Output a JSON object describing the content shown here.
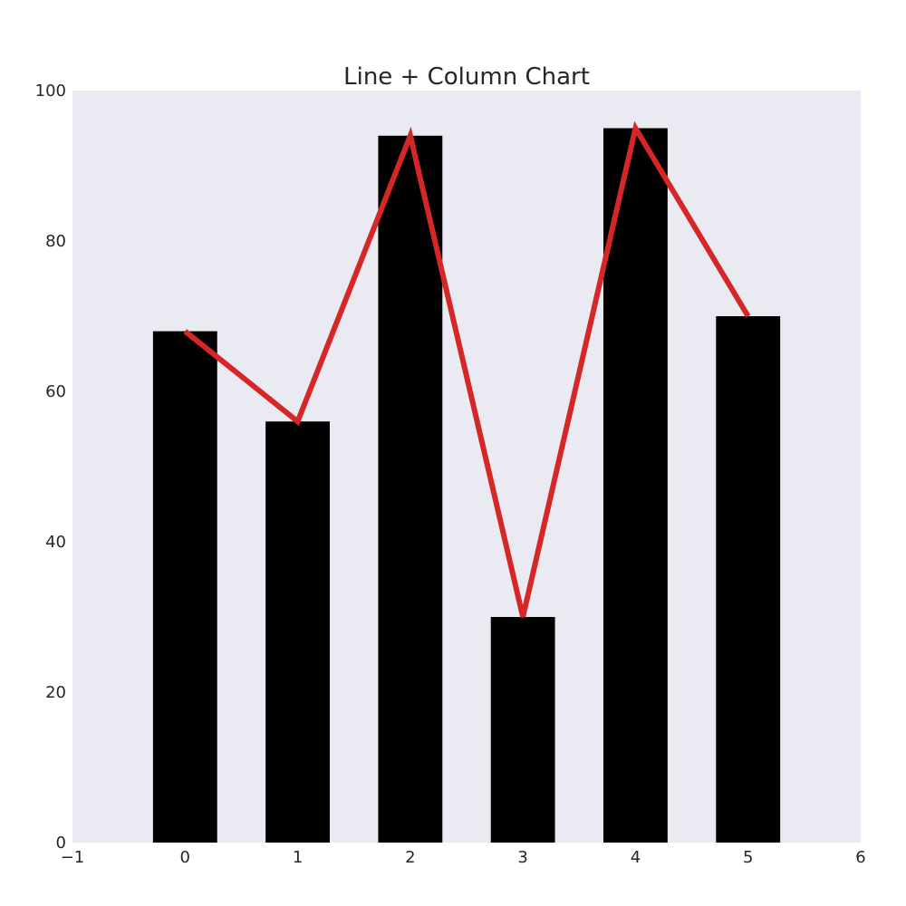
{
  "chart_data": {
    "type": "bar",
    "title": "Line + Column Chart",
    "xlabel": "",
    "ylabel": "",
    "x": [
      0,
      1,
      2,
      3,
      4,
      5
    ],
    "series": [
      {
        "kind": "bar",
        "values": [
          68,
          56,
          94,
          30,
          95,
          70
        ],
        "color": "#000000",
        "bar_width": 0.57
      },
      {
        "kind": "line",
        "values": [
          68,
          56,
          94,
          30,
          95,
          70
        ],
        "color": "#d62728"
      }
    ],
    "xlim": [
      -1,
      6
    ],
    "ylim": [
      0,
      100
    ],
    "xticks": [
      -1,
      0,
      1,
      2,
      3,
      4,
      5,
      6
    ],
    "xtick_labels": [
      "−1",
      "0",
      "1",
      "2",
      "3",
      "4",
      "5",
      "6"
    ],
    "yticks": [
      0,
      20,
      40,
      60,
      80,
      100
    ],
    "ytick_labels": [
      "0",
      "20",
      "40",
      "60",
      "80",
      "100"
    ],
    "grid": false,
    "legend": "none",
    "background_color": "#eaeaf2"
  }
}
